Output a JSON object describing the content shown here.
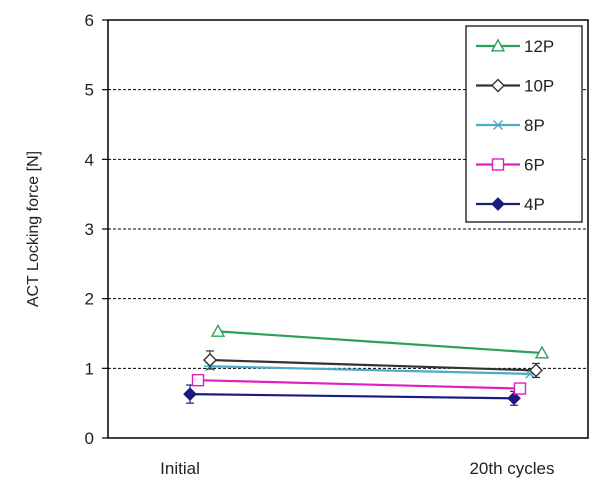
{
  "chart_data": {
    "type": "line",
    "categories": [
      "Initial",
      "20th cycles"
    ],
    "ylabel": "ACT Locking force [N]",
    "ylim": [
      0,
      6
    ],
    "yticks": [
      0,
      1,
      2,
      3,
      4,
      5,
      6
    ],
    "grid": "horizontal dashed",
    "legend_position": "top-right",
    "series": [
      {
        "name": "12P",
        "values": [
          1.53,
          1.22
        ],
        "color": "#2ca05a",
        "marker": "triangle-open"
      },
      {
        "name": "10P",
        "values": [
          1.12,
          0.97
        ],
        "color": "#333333",
        "marker": "diamond-open",
        "error": [
          0.13,
          0.1
        ]
      },
      {
        "name": "8P",
        "values": [
          1.03,
          0.92
        ],
        "color": "#4bacc6",
        "marker": "asterisk"
      },
      {
        "name": "6P",
        "values": [
          0.83,
          0.71
        ],
        "color": "#e020c0",
        "marker": "square-open"
      },
      {
        "name": "4P",
        "values": [
          0.63,
          0.57
        ],
        "color": "#1a1a80",
        "marker": "diamond-filled",
        "error": [
          0.13,
          0.1
        ]
      }
    ]
  }
}
